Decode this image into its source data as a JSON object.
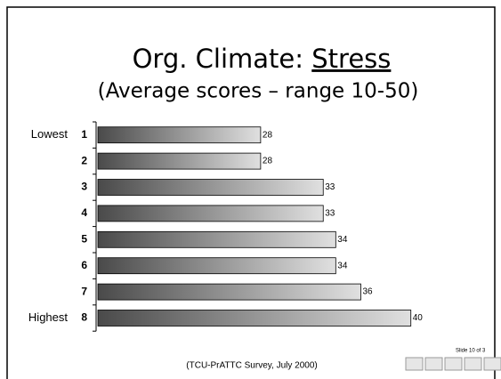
{
  "chart_data": {
    "type": "hbar",
    "title": "Org. Climate:",
    "title_underlined": "Stress",
    "subtitle": "(Average scores – range 10-50)",
    "categories": [
      "1",
      "2",
      "3",
      "4",
      "5",
      "6",
      "7",
      "8"
    ],
    "row_labels": [
      "Lowest",
      null,
      null,
      null,
      null,
      null,
      null,
      "Highest"
    ],
    "values": [
      28,
      28,
      33,
      33,
      34,
      34,
      36,
      40
    ],
    "xlim": [
      15,
      44
    ],
    "color_start": "#4a4a4a",
    "color_end": "#e0e0e0",
    "source": "(TCU-PrATTC Survey, July 2000)",
    "slide_number": "Slide 10 of 3"
  }
}
